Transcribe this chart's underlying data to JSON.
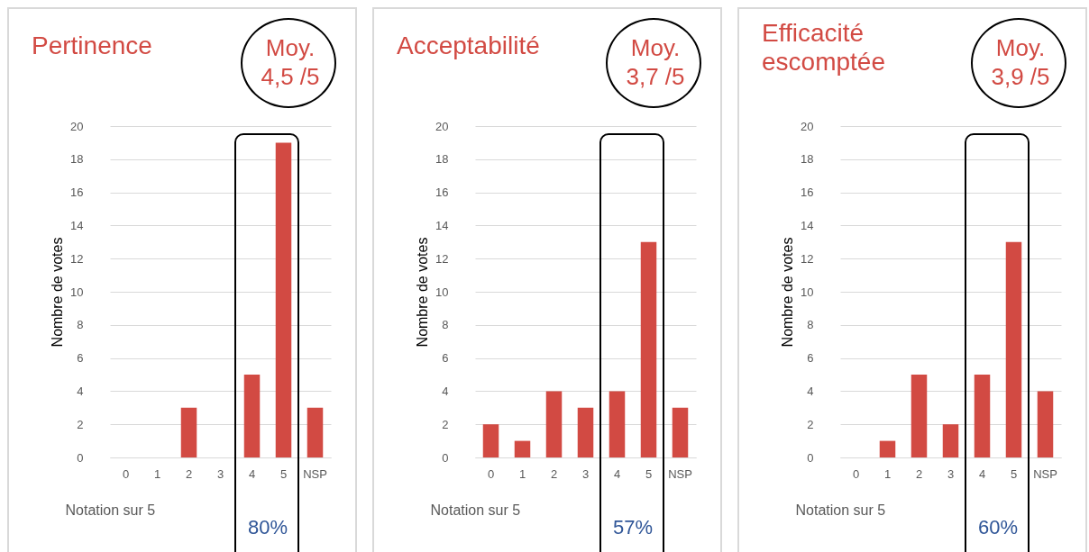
{
  "chart_data": [
    {
      "type": "bar",
      "title": "Pertinence",
      "xlabel": "Notation sur 5",
      "ylabel": "Nombre de votes",
      "categories": [
        "0",
        "1",
        "2",
        "3",
        "4",
        "5",
        "NSP"
      ],
      "values": [
        0,
        0,
        3,
        0,
        5,
        19,
        3
      ],
      "color": "#d24a43",
      "ylim": [
        0,
        20
      ],
      "yticks": [
        0,
        2,
        4,
        6,
        8,
        10,
        12,
        14,
        16,
        18,
        20
      ],
      "grid": "y",
      "annotations": [
        "Moy.\n4,5 /5",
        "80%"
      ]
    },
    {
      "type": "bar",
      "title": "Acceptabilité",
      "xlabel": "Notation sur 5",
      "ylabel": "Nombre de votes",
      "categories": [
        "0",
        "1",
        "2",
        "3",
        "4",
        "5",
        "NSP"
      ],
      "values": [
        2,
        1,
        4,
        3,
        4,
        13,
        3
      ],
      "color": "#d24a43",
      "ylim": [
        0,
        20
      ],
      "yticks": [
        0,
        2,
        4,
        6,
        8,
        10,
        12,
        14,
        16,
        18,
        20
      ],
      "grid": "y",
      "annotations": [
        "Moy.\n3,7 /5",
        "57%"
      ]
    },
    {
      "type": "bar",
      "title": "Efficacité\nescomptée",
      "xlabel": "Notation sur 5",
      "ylabel": "Nombre de votes",
      "categories": [
        "0",
        "1",
        "2",
        "3",
        "4",
        "5",
        "NSP"
      ],
      "values": [
        0,
        1,
        5,
        2,
        5,
        13,
        4
      ],
      "color": "#d24a43",
      "ylim": [
        0,
        20
      ],
      "yticks": [
        0,
        2,
        4,
        6,
        8,
        10,
        12,
        14,
        16,
        18,
        20
      ],
      "grid": "y",
      "annotations": [
        "Moy.\n3,9 /5",
        "60%"
      ]
    }
  ]
}
